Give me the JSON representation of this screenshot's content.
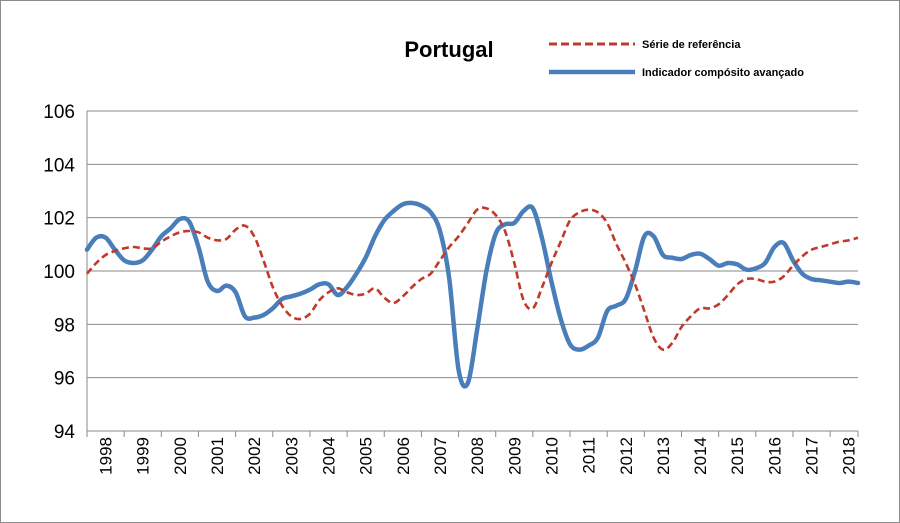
{
  "chart_data": {
    "type": "line",
    "title": "Portugal",
    "xlabel": "",
    "ylabel": "",
    "ylim": [
      94,
      106
    ],
    "xlim": [
      1998.0,
      2018.75
    ],
    "yticks": [
      "94",
      "96",
      "98",
      "100",
      "102",
      "104",
      "106"
    ],
    "categories": [
      "1998",
      "1999",
      "2000",
      "2001",
      "2002",
      "2003",
      "2004",
      "2005",
      "2006",
      "2007",
      "2008",
      "2009",
      "2010",
      "2011",
      "2012",
      "2013",
      "2014",
      "2015",
      "2016",
      "2017",
      "2018"
    ],
    "grid": "horizontal",
    "legend_position": "top-right",
    "series": [
      {
        "name": "Série de referência",
        "color": "#C0392B",
        "style": "dashed",
        "x": [
          1998.0,
          1998.25,
          1998.5,
          1998.75,
          1999.0,
          1999.25,
          1999.5,
          1999.75,
          2000.0,
          2000.25,
          2000.5,
          2000.75,
          2001.0,
          2001.25,
          2001.5,
          2001.75,
          2002.0,
          2002.25,
          2002.5,
          2002.75,
          2003.0,
          2003.25,
          2003.5,
          2003.75,
          2004.0,
          2004.25,
          2004.5,
          2004.75,
          2005.0,
          2005.25,
          2005.5,
          2005.75,
          2006.0,
          2006.25,
          2006.5,
          2006.75,
          2007.0,
          2007.25,
          2007.5,
          2007.75,
          2008.0,
          2008.25,
          2008.5,
          2008.75,
          2009.0,
          2009.25,
          2009.5,
          2009.75,
          2010.0,
          2010.25,
          2010.5,
          2010.75,
          2011.0,
          2011.25,
          2011.5,
          2011.75,
          2012.0,
          2012.25,
          2012.5,
          2012.75,
          2013.0,
          2013.25,
          2013.5,
          2013.75,
          2014.0,
          2014.25,
          2014.5,
          2014.75,
          2015.0,
          2015.25,
          2015.5,
          2015.75,
          2016.0,
          2016.25,
          2016.5,
          2016.75,
          2017.0,
          2017.25,
          2017.5,
          2017.75,
          2018.0,
          2018.25,
          2018.5,
          2018.75
        ],
        "values": [
          99.9,
          100.3,
          100.6,
          100.75,
          100.85,
          100.9,
          100.85,
          100.85,
          101.1,
          101.3,
          101.45,
          101.5,
          101.45,
          101.25,
          101.15,
          101.2,
          101.55,
          101.7,
          101.3,
          100.4,
          99.4,
          98.7,
          98.3,
          98.2,
          98.4,
          98.9,
          99.2,
          99.35,
          99.2,
          99.1,
          99.15,
          99.35,
          99.0,
          98.8,
          99.05,
          99.4,
          99.7,
          99.9,
          100.4,
          100.9,
          101.3,
          101.8,
          102.3,
          102.35,
          102.1,
          101.5,
          100.3,
          98.9,
          98.6,
          99.4,
          100.3,
          101.1,
          101.9,
          102.2,
          102.3,
          102.2,
          101.8,
          101.0,
          100.3,
          99.5,
          98.5,
          97.5,
          97.05,
          97.3,
          97.9,
          98.3,
          98.6,
          98.6,
          98.75,
          99.1,
          99.5,
          99.7,
          99.7,
          99.6,
          99.6,
          99.8,
          100.2,
          100.55,
          100.8,
          100.9,
          101.0,
          101.1,
          101.15,
          101.25
        ]
      },
      {
        "name": "Indicador compósito avançado",
        "color": "#4A7EBB",
        "style": "solid",
        "x": [
          1998.0,
          1998.25,
          1998.5,
          1998.75,
          1999.0,
          1999.25,
          1999.5,
          1999.75,
          2000.0,
          2000.25,
          2000.5,
          2000.75,
          2001.0,
          2001.25,
          2001.5,
          2001.75,
          2002.0,
          2002.25,
          2002.5,
          2002.75,
          2003.0,
          2003.25,
          2003.5,
          2003.75,
          2004.0,
          2004.25,
          2004.5,
          2004.75,
          2005.0,
          2005.25,
          2005.5,
          2005.75,
          2006.0,
          2006.25,
          2006.5,
          2006.75,
          2007.0,
          2007.25,
          2007.5,
          2007.75,
          2008.0,
          2008.25,
          2008.5,
          2008.75,
          2009.0,
          2009.25,
          2009.5,
          2009.75,
          2010.0,
          2010.25,
          2010.5,
          2010.75,
          2011.0,
          2011.25,
          2011.5,
          2011.75,
          2012.0,
          2012.25,
          2012.5,
          2012.75,
          2013.0,
          2013.25,
          2013.5,
          2013.75,
          2014.0,
          2014.25,
          2014.5,
          2014.75,
          2015.0,
          2015.25,
          2015.5,
          2015.75,
          2016.0,
          2016.25,
          2016.5,
          2016.75,
          2017.0,
          2017.25,
          2017.5,
          2017.75,
          2018.0,
          2018.25,
          2018.5,
          2018.75
        ],
        "values": [
          100.8,
          101.25,
          101.25,
          100.8,
          100.4,
          100.3,
          100.4,
          100.8,
          101.3,
          101.6,
          101.95,
          101.85,
          100.9,
          99.6,
          99.25,
          99.45,
          99.2,
          98.3,
          98.25,
          98.35,
          98.6,
          98.95,
          99.05,
          99.15,
          99.3,
          99.5,
          99.5,
          99.1,
          99.4,
          99.9,
          100.5,
          101.3,
          101.9,
          102.25,
          102.5,
          102.55,
          102.45,
          102.2,
          101.5,
          99.7,
          96.3,
          95.8,
          97.8,
          100.0,
          101.4,
          101.75,
          101.8,
          102.25,
          102.35,
          101.2,
          99.6,
          98.2,
          97.25,
          97.05,
          97.2,
          97.5,
          98.5,
          98.7,
          98.95,
          100.0,
          101.3,
          101.3,
          100.6,
          100.5,
          100.45,
          100.6,
          100.65,
          100.45,
          100.2,
          100.3,
          100.25,
          100.05,
          100.1,
          100.3,
          100.9,
          101.05,
          100.4,
          99.9,
          99.7,
          99.65,
          99.6,
          99.55,
          99.6,
          99.55
        ]
      }
    ]
  }
}
